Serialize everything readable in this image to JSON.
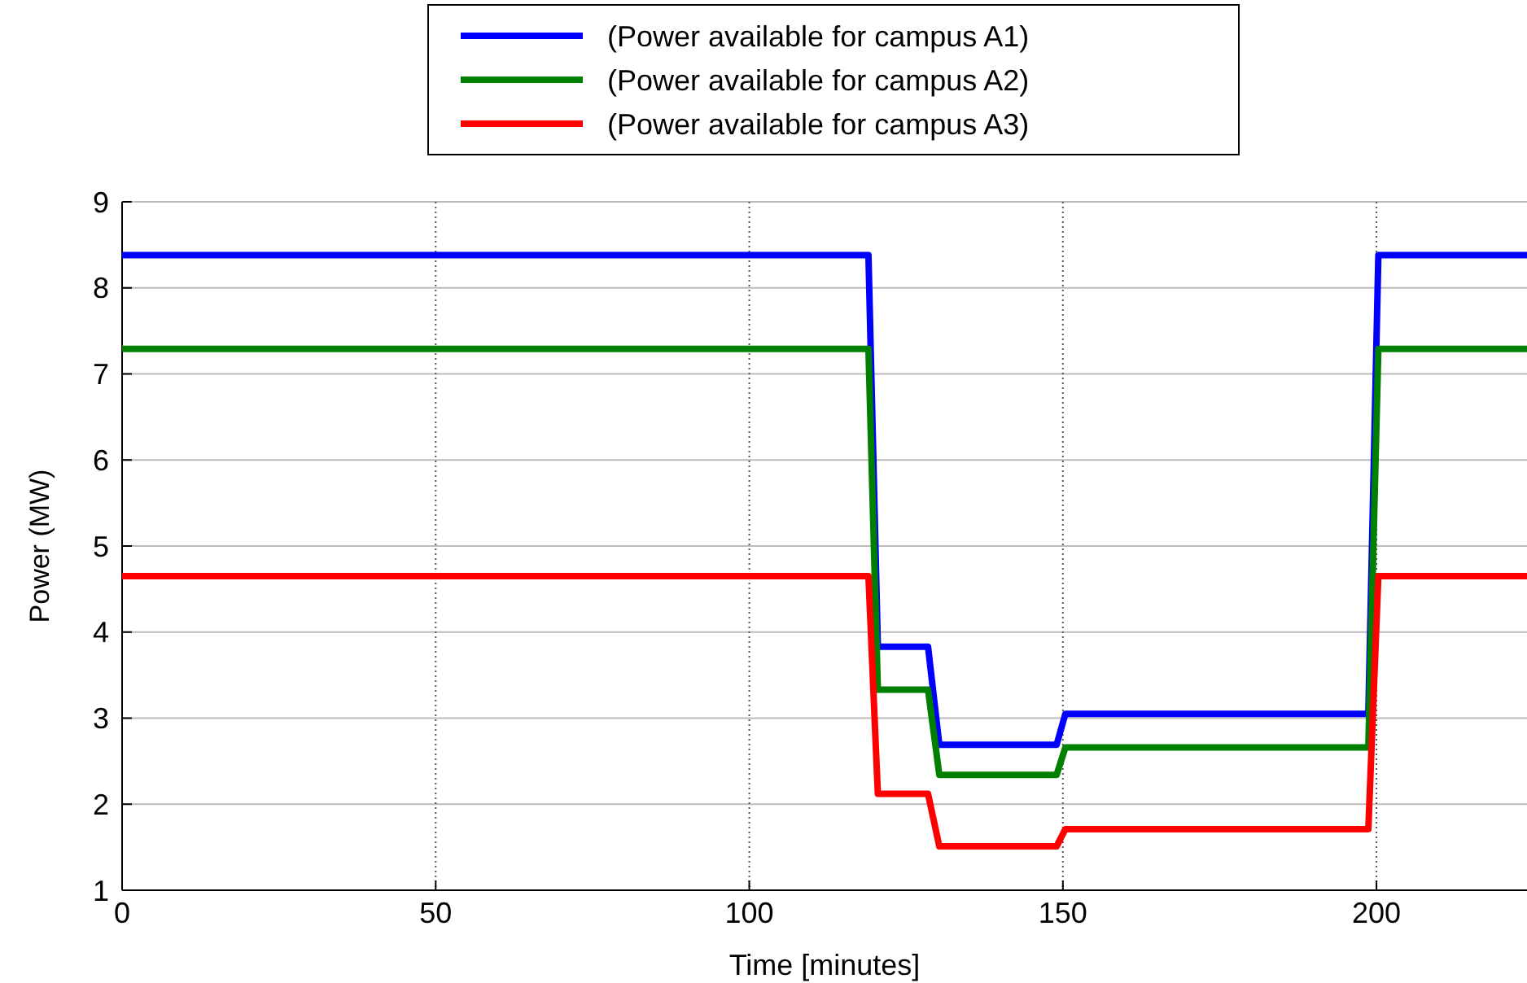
{
  "chart_data": {
    "type": "line",
    "xlabel": "Time [minutes]",
    "ylabel": "Power (MW)",
    "xlim": [
      0,
      224
    ],
    "ylim": [
      1,
      9
    ],
    "xticks": [
      0,
      50,
      100,
      150,
      200
    ],
    "yticks": [
      1,
      2,
      3,
      4,
      5,
      6,
      7,
      8,
      9
    ],
    "grid": true,
    "legend": "top",
    "line_style": "solid",
    "marker": "none",
    "x": [
      0,
      119,
      120.5,
      128.5,
      130.3,
      149,
      150.4,
      198.7,
      200.3,
      224
    ],
    "series": [
      {
        "name": "(Power available for campus A1)",
        "color": "#0000ff",
        "values": [
          8.38,
          8.38,
          3.83,
          3.83,
          2.69,
          2.69,
          3.05,
          3.05,
          8.38,
          8.38
        ]
      },
      {
        "name": "(Power available for campus A2)",
        "color": "#008000",
        "values": [
          7.29,
          7.29,
          3.33,
          3.33,
          2.34,
          2.34,
          2.66,
          2.66,
          7.29,
          7.29
        ]
      },
      {
        "name": "(Power available for campus A3)",
        "color": "#ff0000",
        "values": [
          4.65,
          4.65,
          2.12,
          2.12,
          1.51,
          1.51,
          1.71,
          1.71,
          4.65,
          4.65
        ]
      }
    ]
  }
}
